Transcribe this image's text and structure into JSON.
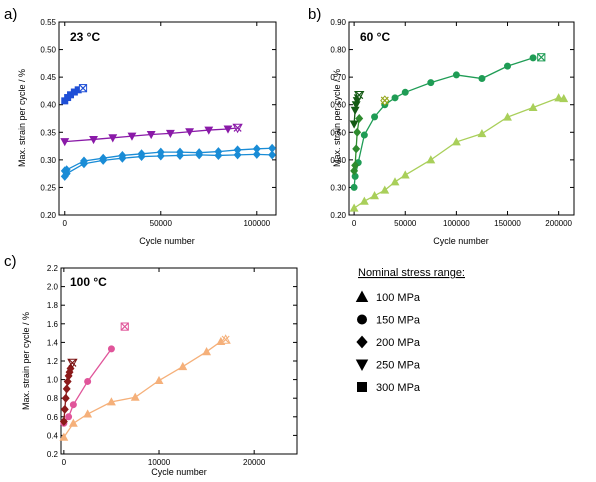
{
  "panel_letters": [
    "a)",
    "b)",
    "c)"
  ],
  "legend": {
    "title": "Nominal stress range:",
    "items": [
      {
        "marker": "triangle-up",
        "label": "100 MPa"
      },
      {
        "marker": "circle",
        "label": "150 MPa"
      },
      {
        "marker": "diamond",
        "label": "200 MPa"
      },
      {
        "marker": "triangle-down",
        "label": "250 MPa"
      },
      {
        "marker": "square",
        "label": "300 MPa"
      }
    ]
  },
  "chart_data": [
    {
      "type": "line",
      "panel": "a)",
      "temperature_label": "23 °C",
      "xlabel": "Cycle number",
      "ylabel": "Max. strain per cycle / %",
      "xlim": [
        -3000,
        110000
      ],
      "ylim": [
        0.2,
        0.55
      ],
      "xticks": [
        0,
        50000,
        100000
      ],
      "yticks": [
        0.2,
        0.25,
        0.3,
        0.35,
        0.4,
        0.45,
        0.5,
        0.55
      ],
      "grid": false,
      "series": [
        {
          "marker": "square",
          "color": "#1f4fd6",
          "x": [
            0,
            1500,
            3000,
            5000,
            7000,
            9500
          ],
          "y": [
            0.407,
            0.413,
            0.418,
            0.423,
            0.427,
            0.43
          ],
          "end_marker": true
        },
        {
          "marker": "triangle-down",
          "color": "#8a1aa8",
          "x": [
            0,
            15000,
            25000,
            35000,
            45000,
            55000,
            65000,
            75000,
            85000,
            90000
          ],
          "y": [
            0.333,
            0.337,
            0.34,
            0.343,
            0.346,
            0.348,
            0.351,
            0.354,
            0.356,
            0.358
          ],
          "end_marker": true
        },
        {
          "marker": "diamond",
          "color": "#1a8cd6",
          "x": [
            0,
            1000,
            10000,
            20000,
            30000,
            40000,
            50000,
            60000,
            70000,
            80000,
            90000,
            100000,
            108000
          ],
          "y": [
            0.28,
            0.282,
            0.298,
            0.303,
            0.308,
            0.311,
            0.314,
            0.314,
            0.313,
            0.315,
            0.318,
            0.32,
            0.321
          ],
          "end_marker": false
        },
        {
          "marker": "diamond",
          "color": "#1a8cd6",
          "x": [
            0,
            1000,
            10000,
            20000,
            30000,
            40000,
            50000,
            60000,
            70000,
            80000,
            90000,
            100000,
            108000
          ],
          "y": [
            0.27,
            0.275,
            0.293,
            0.299,
            0.303,
            0.306,
            0.307,
            0.308,
            0.309,
            0.308,
            0.309,
            0.31,
            0.309
          ],
          "end_marker": false
        }
      ]
    },
    {
      "type": "line",
      "panel": "b)",
      "temperature_label": "60 °C",
      "xlabel": "Cycle number",
      "ylabel": "Max. strain per cycle / %",
      "xlim": [
        -5000,
        215000
      ],
      "ylim": [
        0.2,
        0.9
      ],
      "xticks": [
        0,
        50000,
        100000,
        150000,
        200000
      ],
      "yticks": [
        0.2,
        0.3,
        0.4,
        0.5,
        0.6,
        0.7,
        0.8,
        0.9
      ],
      "grid": false,
      "series": [
        {
          "marker": "square",
          "color": "#1f9c55",
          "x": [
            183000
          ],
          "y": [
            0.772
          ],
          "end_marker": true
        },
        {
          "marker": "circle",
          "color": "#1f9c55",
          "x": [
            0,
            1000,
            4000,
            10000,
            20000,
            30000,
            40000,
            50000,
            75000,
            100000,
            125000,
            150000,
            175000
          ],
          "y": [
            0.3,
            0.34,
            0.39,
            0.49,
            0.556,
            0.6,
            0.625,
            0.645,
            0.68,
            0.708,
            0.695,
            0.74,
            0.77
          ],
          "end_marker": false
        },
        {
          "marker": "diamond",
          "color": "#2e8b2e",
          "x": [
            0,
            1000,
            2000,
            3000,
            5000
          ],
          "y": [
            0.36,
            0.38,
            0.44,
            0.5,
            0.55
          ],
          "end_marker": false
        },
        {
          "marker": "diamond",
          "color": "#94a51a",
          "x": [
            30000
          ],
          "y": [
            0.615
          ],
          "end_marker": true
        },
        {
          "marker": "triangle-down",
          "color": "#145a14",
          "x": [
            0,
            1000,
            2000,
            3000,
            4000,
            5000
          ],
          "y": [
            0.53,
            0.58,
            0.6,
            0.615,
            0.625,
            0.635
          ],
          "end_marker": true
        },
        {
          "marker": "triangle-up",
          "color": "#a9cf5a",
          "x": [
            0,
            10000,
            20000,
            30000,
            40000,
            50000,
            75000,
            100000,
            125000,
            150000,
            175000,
            200000,
            205000
          ],
          "y": [
            0.225,
            0.25,
            0.27,
            0.29,
            0.32,
            0.345,
            0.4,
            0.465,
            0.495,
            0.555,
            0.59,
            0.625,
            0.622
          ],
          "end_marker": false
        }
      ]
    },
    {
      "type": "line",
      "panel": "c)",
      "temperature_label": "100 °C",
      "xlabel": "Cycle number",
      "ylabel": "Max. strain per cycle / %",
      "xlim": [
        -300,
        24500
      ],
      "ylim": [
        0.2,
        2.2
      ],
      "xticks": [
        0,
        10000,
        20000
      ],
      "yticks": [
        0.2,
        0.4,
        0.6,
        0.8,
        1.0,
        1.2,
        1.4,
        1.6,
        1.8,
        2.0,
        2.2
      ],
      "grid": false,
      "series": [
        {
          "marker": "square",
          "color": "#e0559a",
          "x": [
            6400
          ],
          "y": [
            1.57
          ],
          "end_marker": true
        },
        {
          "marker": "circle",
          "color": "#e0559a",
          "x": [
            0,
            500,
            1000,
            2500,
            5000
          ],
          "y": [
            0.53,
            0.6,
            0.73,
            0.98,
            1.33
          ],
          "end_marker": false
        },
        {
          "marker": "diamond",
          "color": "#8b1a1a",
          "x": [
            0,
            100,
            200,
            300,
            400,
            500,
            600,
            700
          ],
          "y": [
            0.55,
            0.68,
            0.8,
            0.9,
            0.98,
            1.04,
            1.08,
            1.12
          ],
          "end_marker": false
        },
        {
          "marker": "triangle-down",
          "color": "#7a1111",
          "x": [
            900
          ],
          "y": [
            1.18
          ],
          "end_marker": true
        },
        {
          "marker": "triangle-up",
          "color": "#f5b07a",
          "x": [
            0,
            1000,
            2500,
            5000,
            7500,
            10000,
            12500,
            15000,
            16500,
            17000
          ],
          "y": [
            0.38,
            0.53,
            0.63,
            0.76,
            0.81,
            0.99,
            1.14,
            1.3,
            1.41,
            1.43
          ],
          "end_marker": true
        }
      ]
    }
  ]
}
